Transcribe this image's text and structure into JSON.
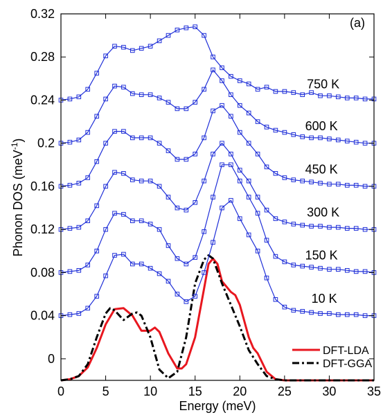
{
  "chart_data": {
    "type": "line",
    "title": "",
    "panel_label": "(a)",
    "xlabel": "Energy (meV)",
    "ylabel_main": "Phonon DOS (meV",
    "ylabel_sup": "-1",
    "ylabel_close": ")",
    "xlim": [
      0,
      35
    ],
    "ylim": [
      -0.02,
      0.32
    ],
    "x_ticks": [
      0,
      5,
      10,
      15,
      20,
      25,
      30,
      35
    ],
    "x_tick_labels": [
      "0",
      "5",
      "10",
      "15",
      "20",
      "25",
      "30",
      "35"
    ],
    "y_ticks": [
      0,
      0.04,
      0.08,
      0.12,
      0.16,
      0.2,
      0.24,
      0.28,
      0.32
    ],
    "y_tick_labels": [
      "0",
      "0.04",
      "0.08",
      "0.12",
      "0.16",
      "0.2",
      "0.24",
      "0.28",
      "0.32"
    ],
    "grid": false,
    "legend_position": "bottom-right",
    "colors": {
      "experiment": "#1f2fd8",
      "lda": "#e8171f",
      "gga": "#000000"
    },
    "experimental_series": [
      {
        "name": "10 K",
        "x": [
          0,
          1,
          2,
          3,
          4,
          5,
          6,
          7,
          8,
          9,
          10,
          11,
          12,
          13,
          14,
          15,
          16,
          17,
          18,
          19,
          20,
          21,
          22,
          23,
          24,
          25,
          26,
          27,
          28,
          29,
          30,
          31,
          32,
          33,
          34,
          35
        ],
        "y": [
          0.04,
          0.041,
          0.042,
          0.047,
          0.058,
          0.077,
          0.096,
          0.097,
          0.088,
          0.088,
          0.084,
          0.079,
          0.072,
          0.06,
          0.053,
          0.058,
          0.08,
          0.108,
          0.14,
          0.147,
          0.13,
          0.115,
          0.1,
          0.075,
          0.055,
          0.048,
          0.045,
          0.044,
          0.043,
          0.042,
          0.042,
          0.041,
          0.041,
          0.041,
          0.04,
          0.04
        ]
      },
      {
        "name": "150 K",
        "x": [
          0,
          1,
          2,
          3,
          4,
          5,
          6,
          7,
          8,
          9,
          10,
          11,
          12,
          13,
          14,
          15,
          16,
          17,
          18,
          19,
          20,
          21,
          22,
          23,
          24,
          25,
          26,
          27,
          28,
          29,
          30,
          31,
          32,
          33,
          34,
          35
        ],
        "y": [
          0.08,
          0.081,
          0.082,
          0.087,
          0.1,
          0.12,
          0.135,
          0.134,
          0.128,
          0.128,
          0.125,
          0.12,
          0.105,
          0.093,
          0.088,
          0.094,
          0.118,
          0.15,
          0.18,
          0.18,
          0.165,
          0.15,
          0.135,
          0.11,
          0.095,
          0.09,
          0.087,
          0.086,
          0.085,
          0.084,
          0.083,
          0.083,
          0.082,
          0.081,
          0.081,
          0.08
        ]
      },
      {
        "name": "300 K",
        "x": [
          0,
          1,
          2,
          3,
          4,
          5,
          6,
          7,
          8,
          9,
          10,
          11,
          12,
          13,
          14,
          15,
          16,
          17,
          18,
          19,
          20,
          21,
          22,
          23,
          24,
          25,
          26,
          27,
          28,
          29,
          30,
          31,
          32,
          33,
          34,
          35
        ],
        "y": [
          0.12,
          0.121,
          0.122,
          0.128,
          0.142,
          0.16,
          0.173,
          0.172,
          0.166,
          0.165,
          0.165,
          0.16,
          0.15,
          0.14,
          0.138,
          0.145,
          0.165,
          0.19,
          0.2,
          0.19,
          0.175,
          0.165,
          0.15,
          0.138,
          0.13,
          0.127,
          0.125,
          0.124,
          0.123,
          0.123,
          0.122,
          0.122,
          0.121,
          0.121,
          0.12,
          0.12
        ]
      },
      {
        "name": "450 K",
        "x": [
          0,
          1,
          2,
          3,
          4,
          5,
          6,
          7,
          8,
          9,
          10,
          11,
          12,
          13,
          14,
          15,
          16,
          17,
          18,
          19,
          20,
          21,
          22,
          23,
          24,
          25,
          26,
          27,
          28,
          29,
          30,
          31,
          32,
          33,
          34,
          35
        ],
        "y": [
          0.16,
          0.161,
          0.163,
          0.168,
          0.183,
          0.2,
          0.211,
          0.211,
          0.205,
          0.205,
          0.205,
          0.2,
          0.193,
          0.185,
          0.185,
          0.19,
          0.205,
          0.23,
          0.235,
          0.225,
          0.21,
          0.2,
          0.19,
          0.178,
          0.172,
          0.168,
          0.166,
          0.165,
          0.164,
          0.163,
          0.162,
          0.162,
          0.161,
          0.161,
          0.16,
          0.16
        ]
      },
      {
        "name": "600 K",
        "x": [
          0,
          1,
          2,
          3,
          4,
          5,
          6,
          7,
          8,
          9,
          10,
          11,
          12,
          13,
          14,
          15,
          16,
          17,
          18,
          19,
          20,
          21,
          22,
          23,
          24,
          25,
          26,
          27,
          28,
          29,
          30,
          31,
          32,
          33,
          34,
          35
        ],
        "y": [
          0.2,
          0.201,
          0.203,
          0.21,
          0.225,
          0.241,
          0.253,
          0.252,
          0.246,
          0.245,
          0.245,
          0.242,
          0.238,
          0.232,
          0.232,
          0.238,
          0.25,
          0.268,
          0.258,
          0.245,
          0.235,
          0.228,
          0.22,
          0.215,
          0.212,
          0.21,
          0.208,
          0.206,
          0.205,
          0.205,
          0.204,
          0.203,
          0.202,
          0.201,
          0.2,
          0.2
        ]
      },
      {
        "name": "750 K",
        "x": [
          0,
          1,
          2,
          3,
          4,
          5,
          6,
          7,
          8,
          9,
          10,
          11,
          12,
          13,
          14,
          15,
          16,
          17,
          18,
          19,
          20,
          21,
          22,
          23,
          24,
          25,
          26,
          27,
          28,
          29,
          30,
          31,
          32,
          33,
          34,
          35
        ],
        "y": [
          0.24,
          0.241,
          0.243,
          0.25,
          0.265,
          0.281,
          0.29,
          0.289,
          0.286,
          0.288,
          0.29,
          0.295,
          0.3,
          0.305,
          0.307,
          0.308,
          0.3,
          0.28,
          0.27,
          0.262,
          0.258,
          0.255,
          0.25,
          0.252,
          0.248,
          0.248,
          0.247,
          0.245,
          0.247,
          0.244,
          0.244,
          0.243,
          0.242,
          0.242,
          0.241,
          0.241
        ]
      }
    ],
    "theory_series": [
      {
        "name": "DFT-LDA",
        "style": "solid",
        "x": [
          0,
          1,
          2,
          3,
          4,
          5,
          6,
          7,
          8,
          9,
          10,
          10.5,
          11,
          12,
          13,
          13.5,
          14,
          15,
          16,
          16.5,
          17,
          17.5,
          18,
          19,
          19.5,
          20,
          21,
          21.5,
          22,
          23,
          24,
          25,
          26,
          35
        ],
        "y": [
          -0.02,
          -0.019,
          -0.016,
          -0.008,
          0.01,
          0.032,
          0.046,
          0.047,
          0.04,
          0.026,
          0.026,
          0.029,
          0.025,
          0.005,
          -0.009,
          -0.009,
          -0.005,
          0.02,
          0.065,
          0.088,
          0.093,
          0.088,
          0.072,
          0.062,
          0.059,
          0.05,
          0.02,
          0.01,
          0.005,
          -0.012,
          -0.019,
          -0.02,
          -0.02,
          -0.02
        ]
      },
      {
        "name": "DFT-GGA",
        "style": "dashdot",
        "x": [
          0,
          1,
          2,
          3,
          4,
          5,
          5.5,
          6,
          7,
          8,
          8.5,
          9,
          10,
          11,
          12,
          13,
          14,
          15,
          16,
          16.5,
          17,
          18,
          19,
          20,
          21,
          22,
          23,
          24,
          25,
          35
        ],
        "y": [
          -0.02,
          -0.019,
          -0.016,
          -0.005,
          0.02,
          0.042,
          0.047,
          0.045,
          0.036,
          0.042,
          0.043,
          0.04,
          0.02,
          -0.01,
          -0.018,
          -0.012,
          0.02,
          0.07,
          0.092,
          0.096,
          0.093,
          0.07,
          0.05,
          0.03,
          0.008,
          -0.005,
          -0.016,
          -0.019,
          -0.02,
          -0.02
        ]
      }
    ],
    "temperature_labels": [
      {
        "text": "750 K",
        "x": 27.5,
        "y": 0.251
      },
      {
        "text": "600 K",
        "x": 27.3,
        "y": 0.212
      },
      {
        "text": "450 K",
        "x": 27.3,
        "y": 0.172
      },
      {
        "text": "300 K",
        "x": 27.5,
        "y": 0.132
      },
      {
        "text": "150 K",
        "x": 27.3,
        "y": 0.092
      },
      {
        "text": "10 K",
        "x": 28.0,
        "y": 0.052
      }
    ]
  }
}
